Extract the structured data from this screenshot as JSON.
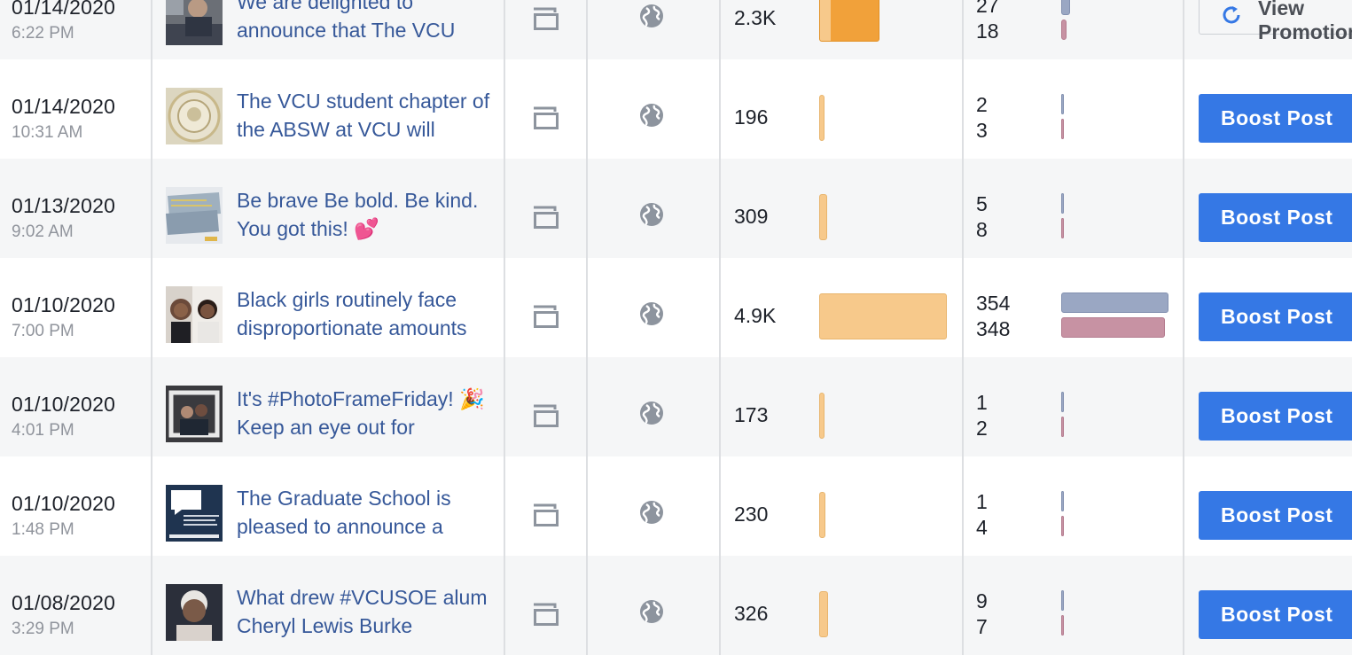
{
  "columns": {
    "reach_bar_color": "#f7c98b",
    "reach_bar_color_boosted": "#f1a13a",
    "engagement_click_color": "#9aa7c3",
    "engagement_reaction_color": "#c792a3",
    "boost_button_color": "#3578e5"
  },
  "posts": [
    {
      "date": "01/14/2020",
      "time": "6:22 PM",
      "text": "We are delighted to announce that The VCU",
      "thumbnail": "photo-person-at-desk",
      "type_icon": "album-icon",
      "privacy_icon": "globe-icon",
      "reach": "2.3K",
      "reach_fraction": 0.47,
      "reach_boosted": true,
      "engagement_clicks": "27",
      "engagement_reactions": "18",
      "clicks_fraction": 0.08,
      "reactions_fraction": 0.05,
      "action_label": "View Promotion",
      "action_kind": "view"
    },
    {
      "date": "01/14/2020",
      "time": "10:31 AM",
      "text": "The VCU student chapter of the ABSW at VCU will",
      "thumbnail": "chapter-seal-logo",
      "type_icon": "album-icon",
      "privacy_icon": "globe-icon",
      "reach": "196",
      "reach_fraction": 0.04,
      "reach_boosted": false,
      "engagement_clicks": "2",
      "engagement_reactions": "3",
      "clicks_fraction": 0.01,
      "reactions_fraction": 0.01,
      "action_label": "Boost Post",
      "action_kind": "boost"
    },
    {
      "date": "01/13/2020",
      "time": "9:02 AM",
      "text": "Be brave Be bold. Be kind. You got this! 💕",
      "thumbnail": "quote-graphic",
      "type_icon": "album-icon",
      "privacy_icon": "globe-icon",
      "reach": "309",
      "reach_fraction": 0.06,
      "reach_boosted": false,
      "engagement_clicks": "5",
      "engagement_reactions": "8",
      "clicks_fraction": 0.01,
      "reactions_fraction": 0.02,
      "action_label": "Boost Post",
      "action_kind": "boost"
    },
    {
      "date": "01/10/2020",
      "time": "7:00 PM",
      "text": "Black girls routinely face disproportionate amounts",
      "thumbnail": "photo-two-women",
      "type_icon": "album-icon",
      "privacy_icon": "globe-icon",
      "reach": "4.9K",
      "reach_fraction": 1.0,
      "reach_boosted": false,
      "engagement_clicks": "354",
      "engagement_reactions": "348",
      "clicks_fraction": 1.0,
      "reactions_fraction": 0.98,
      "action_label": "Boost Post",
      "action_kind": "boost"
    },
    {
      "date": "01/10/2020",
      "time": "4:01 PM",
      "text": "It's #PhotoFrameFriday! 🎉 Keep an eye out for",
      "thumbnail": "photo-frame-group",
      "type_icon": "album-icon",
      "privacy_icon": "globe-icon",
      "reach": "173",
      "reach_fraction": 0.035,
      "reach_boosted": false,
      "engagement_clicks": "1",
      "engagement_reactions": "2",
      "clicks_fraction": 0.005,
      "reactions_fraction": 0.006,
      "action_label": "Boost Post",
      "action_kind": "boost"
    },
    {
      "date": "01/10/2020",
      "time": "1:48 PM",
      "text": "The Graduate School is pleased to announce a",
      "thumbnail": "announcement-graphic",
      "type_icon": "album-icon",
      "privacy_icon": "globe-icon",
      "reach": "230",
      "reach_fraction": 0.047,
      "reach_boosted": false,
      "engagement_clicks": "1",
      "engagement_reactions": "4",
      "clicks_fraction": 0.005,
      "reactions_fraction": 0.01,
      "action_label": "Boost Post",
      "action_kind": "boost"
    },
    {
      "date": "01/08/2020",
      "time": "3:29 PM",
      "text": "What drew #VCUSOE alum Cheryl Lewis Burke",
      "thumbnail": "photo-portrait-woman",
      "type_icon": "album-icon",
      "privacy_icon": "globe-icon",
      "reach": "326",
      "reach_fraction": 0.067,
      "reach_boosted": false,
      "engagement_clicks": "9",
      "engagement_reactions": "7",
      "clicks_fraction": 0.02,
      "reactions_fraction": 0.015,
      "action_label": "Boost Post",
      "action_kind": "boost"
    }
  ]
}
